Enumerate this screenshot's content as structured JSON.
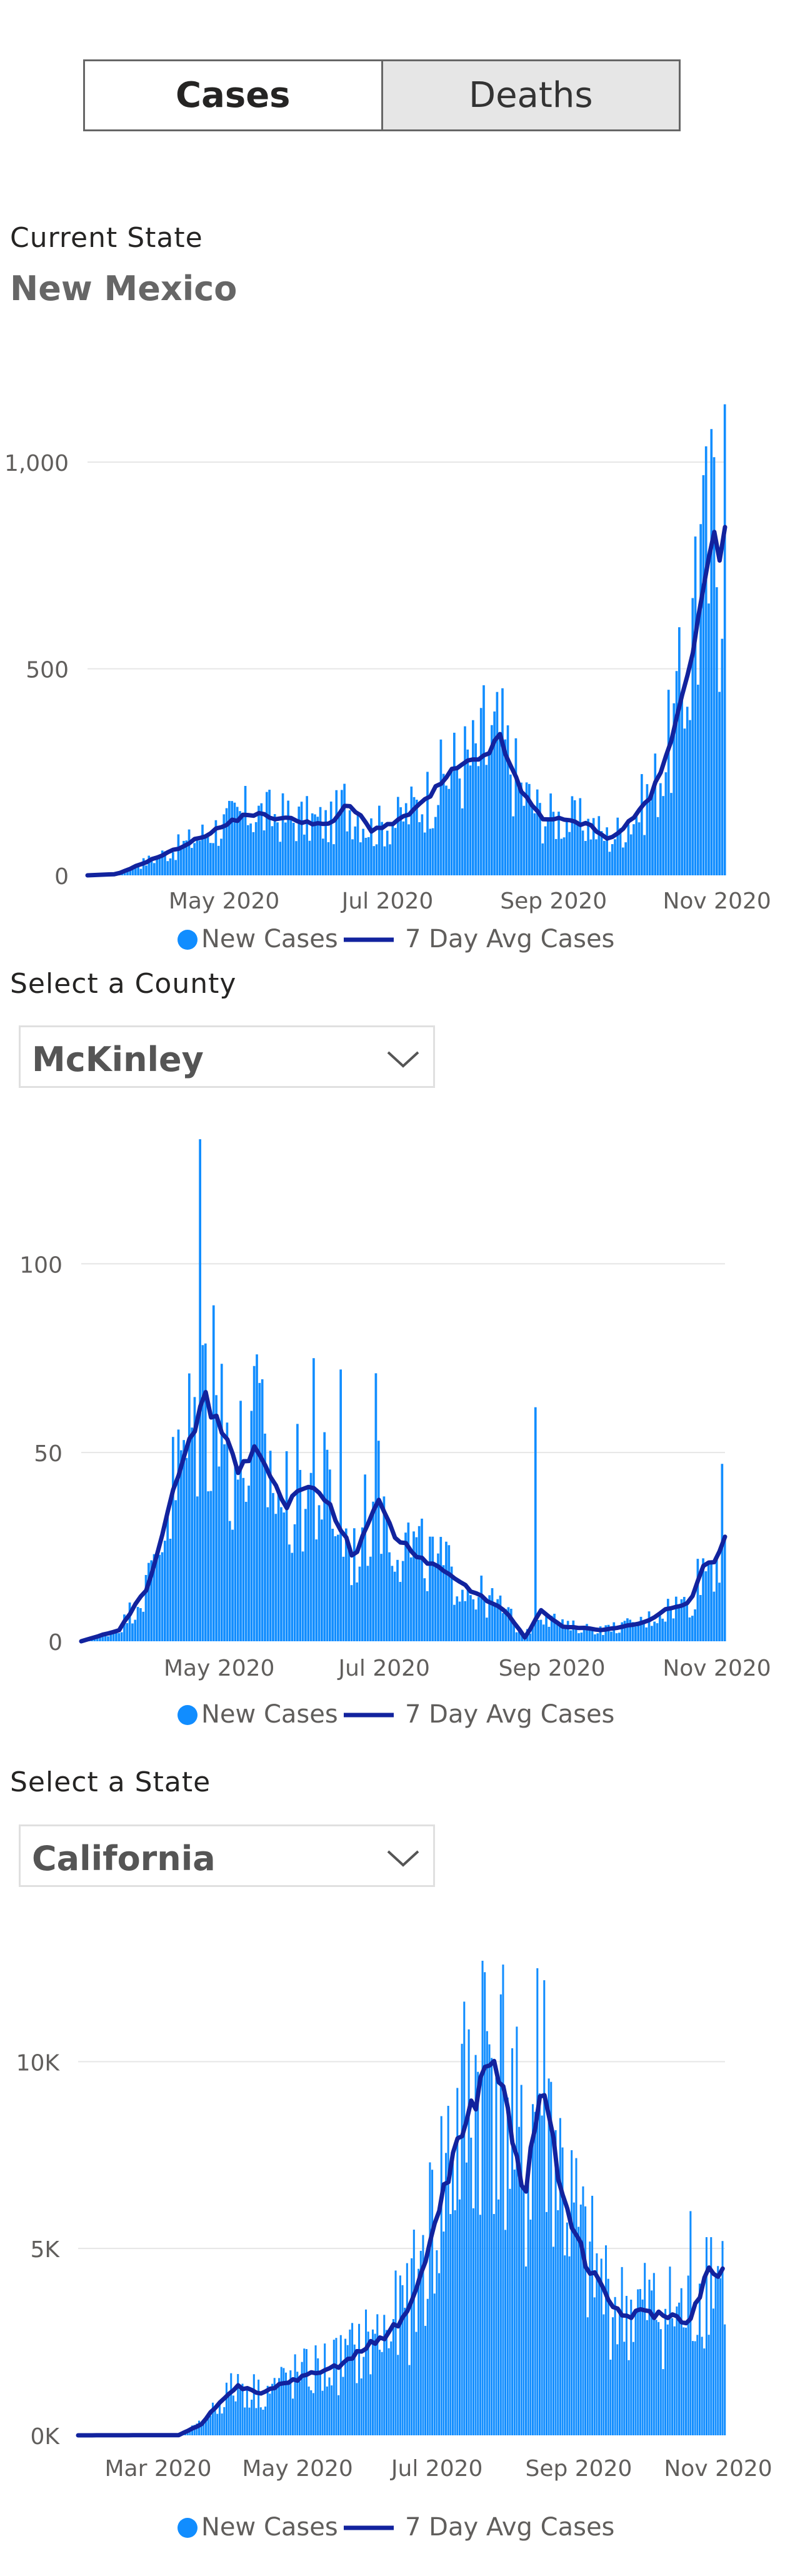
{
  "toggle": {
    "cases_label": "Cases",
    "deaths_label": "Deaths",
    "selected": "Cases"
  },
  "current_state": {
    "label": "Current State",
    "value": "New Mexico"
  },
  "county_select": {
    "label": "Select a County",
    "value": "McKinley"
  },
  "state_select": {
    "label": "Select a State",
    "value": "California"
  },
  "colors": {
    "bars": "#118dff",
    "line": "#12239e",
    "grid": "#e6e6e6",
    "axis_text": "#605e5c"
  },
  "icons": {
    "dropdown": "chevron-down-icon"
  },
  "chart_data": [
    {
      "id": "state",
      "type": "bar",
      "y_ticks": [
        {
          "v": 0,
          "label": "0"
        },
        {
          "v": 500,
          "label": "500"
        },
        {
          "v": 1000,
          "label": "1,000"
        }
      ],
      "x_ticks": [
        {
          "date": "2020-05-01",
          "label": "May 2020"
        },
        {
          "date": "2020-07-01",
          "label": "Jul 2020"
        },
        {
          "date": "2020-09-01",
          "label": "Sep 2020"
        },
        {
          "date": "2020-11-01",
          "label": "Nov 2020"
        }
      ],
      "x_range": [
        "2020-03-11",
        "2020-11-04"
      ],
      "ylim": [
        0,
        1150
      ],
      "legend": [
        "New Cases",
        "7 Day Avg Cases"
      ],
      "avg_knots": [
        [
          "2020-03-11",
          0
        ],
        [
          "2020-03-22",
          3
        ],
        [
          "2020-04-01",
          30
        ],
        [
          "2020-04-12",
          60
        ],
        [
          "2020-04-20",
          85
        ],
        [
          "2020-05-01",
          120
        ],
        [
          "2020-05-10",
          150
        ],
        [
          "2020-05-20",
          140
        ],
        [
          "2020-06-01",
          130
        ],
        [
          "2020-06-10",
          120
        ],
        [
          "2020-06-15",
          170
        ],
        [
          "2020-06-20",
          150
        ],
        [
          "2020-06-25",
          110
        ],
        [
          "2020-07-05",
          130
        ],
        [
          "2020-07-15",
          180
        ],
        [
          "2020-07-25",
          250
        ],
        [
          "2020-08-05",
          285
        ],
        [
          "2020-08-12",
          330
        ],
        [
          "2020-08-20",
          200
        ],
        [
          "2020-08-28",
          140
        ],
        [
          "2020-09-08",
          130
        ],
        [
          "2020-09-15",
          120
        ],
        [
          "2020-09-22",
          85
        ],
        [
          "2020-10-01",
          140
        ],
        [
          "2020-10-08",
          200
        ],
        [
          "2020-10-15",
          320
        ],
        [
          "2020-10-22",
          520
        ],
        [
          "2020-10-27",
          720
        ],
        [
          "2020-10-31",
          800
        ],
        [
          "2020-11-02",
          760
        ],
        [
          "2020-11-04",
          870
        ]
      ],
      "spikes": [
        [
          "2020-08-06",
          460
        ],
        [
          "2020-10-30",
          1080
        ],
        [
          "2020-11-04",
          1140
        ],
        [
          "2020-10-26",
          850
        ],
        [
          "2020-10-24",
          820
        ]
      ]
    },
    {
      "id": "county",
      "type": "bar",
      "y_ticks": [
        {
          "v": 0,
          "label": "0"
        },
        {
          "v": 50,
          "label": "50"
        },
        {
          "v": 100,
          "label": "100"
        }
      ],
      "x_ticks": [
        {
          "date": "2020-05-01",
          "label": "May 2020"
        },
        {
          "date": "2020-07-01",
          "label": "Jul 2020"
        },
        {
          "date": "2020-09-01",
          "label": "Sep 2020"
        },
        {
          "date": "2020-11-01",
          "label": "Nov 2020"
        }
      ],
      "x_range": [
        "2020-03-11",
        "2020-11-04"
      ],
      "ylim": [
        0,
        135
      ],
      "legend": [
        "New Cases",
        "7 Day Avg Cases"
      ],
      "avg_knots": [
        [
          "2020-03-11",
          0
        ],
        [
          "2020-03-25",
          3
        ],
        [
          "2020-04-05",
          15
        ],
        [
          "2020-04-12",
          35
        ],
        [
          "2020-04-20",
          52
        ],
        [
          "2020-04-25",
          65
        ],
        [
          "2020-05-01",
          58
        ],
        [
          "2020-05-08",
          45
        ],
        [
          "2020-05-15",
          52
        ],
        [
          "2020-05-25",
          35
        ],
        [
          "2020-06-01",
          40
        ],
        [
          "2020-06-10",
          38
        ],
        [
          "2020-06-20",
          22
        ],
        [
          "2020-06-28",
          38
        ],
        [
          "2020-07-05",
          28
        ],
        [
          "2020-07-15",
          22
        ],
        [
          "2020-07-25",
          18
        ],
        [
          "2020-08-05",
          12
        ],
        [
          "2020-08-15",
          8
        ],
        [
          "2020-08-22",
          1
        ],
        [
          "2020-08-28",
          8
        ],
        [
          "2020-09-05",
          4
        ],
        [
          "2020-09-20",
          3
        ],
        [
          "2020-10-05",
          5
        ],
        [
          "2020-10-15",
          9
        ],
        [
          "2020-10-22",
          10
        ],
        [
          "2020-10-27",
          20
        ],
        [
          "2020-11-01",
          22
        ],
        [
          "2020-11-04",
          27
        ]
      ],
      "spikes": [
        [
          "2020-04-24",
          133
        ],
        [
          "2020-04-29",
          89
        ],
        [
          "2020-05-15",
          76
        ],
        [
          "2020-06-05",
          75
        ],
        [
          "2020-06-15",
          72
        ],
        [
          "2020-06-28",
          71
        ],
        [
          "2020-08-26",
          62
        ],
        [
          "2020-11-03",
          47
        ]
      ]
    },
    {
      "id": "california",
      "type": "bar",
      "y_ticks": [
        {
          "v": 0,
          "label": "0K"
        },
        {
          "v": 5000,
          "label": "5K"
        },
        {
          "v": 10000,
          "label": "10K"
        }
      ],
      "x_ticks": [
        {
          "date": "2020-03-01",
          "label": "Mar 2020"
        },
        {
          "date": "2020-05-01",
          "label": "May 2020"
        },
        {
          "date": "2020-07-01",
          "label": "Jul 2020"
        },
        {
          "date": "2020-09-01",
          "label": "Sep 2020"
        },
        {
          "date": "2020-11-01",
          "label": "Nov 2020"
        }
      ],
      "x_range": [
        "2020-01-26",
        "2020-11-04"
      ],
      "ylim": [
        0,
        12800
      ],
      "legend": [
        "New Cases",
        "7 Day Avg Cases"
      ],
      "avg_knots": [
        [
          "2020-01-26",
          0
        ],
        [
          "2020-03-10",
          5
        ],
        [
          "2020-03-20",
          300
        ],
        [
          "2020-03-28",
          900
        ],
        [
          "2020-04-05",
          1300
        ],
        [
          "2020-04-15",
          1100
        ],
        [
          "2020-04-25",
          1400
        ],
        [
          "2020-05-05",
          1600
        ],
        [
          "2020-05-20",
          1900
        ],
        [
          "2020-06-01",
          2400
        ],
        [
          "2020-06-10",
          2700
        ],
        [
          "2020-06-20",
          3500
        ],
        [
          "2020-06-28",
          5200
        ],
        [
          "2020-07-08",
          7500
        ],
        [
          "2020-07-15",
          8500
        ],
        [
          "2020-07-22",
          9800
        ],
        [
          "2020-07-26",
          10200
        ],
        [
          "2020-08-02",
          8300
        ],
        [
          "2020-08-08",
          6300
        ],
        [
          "2020-08-15",
          9300
        ],
        [
          "2020-08-20",
          8000
        ],
        [
          "2020-08-27",
          6000
        ],
        [
          "2020-09-05",
          4500
        ],
        [
          "2020-09-12",
          3800
        ],
        [
          "2020-09-20",
          3200
        ],
        [
          "2020-10-01",
          3300
        ],
        [
          "2020-10-10",
          3200
        ],
        [
          "2020-10-20",
          3100
        ],
        [
          "2020-10-25",
          4000
        ],
        [
          "2020-10-29",
          4500
        ],
        [
          "2020-11-01",
          4200
        ],
        [
          "2020-11-04",
          4500
        ]
      ],
      "spikes": [
        [
          "2020-07-21",
          12700
        ],
        [
          "2020-08-14",
          12500
        ],
        [
          "2020-07-29",
          11800
        ],
        [
          "2020-10-20",
          6000
        ],
        [
          "2020-11-03",
          5200
        ]
      ]
    }
  ]
}
